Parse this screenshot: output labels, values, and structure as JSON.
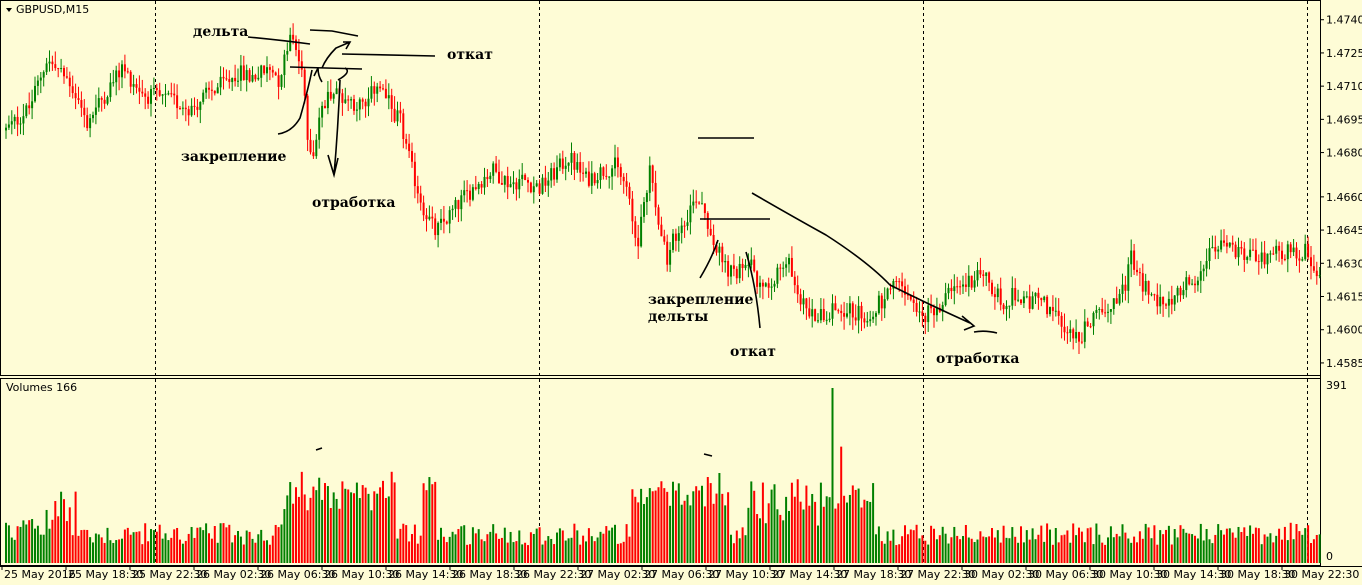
{
  "chart_data": [
    {
      "type": "candlestick",
      "title": "GBPUSD,M15",
      "yticks": [
        1.474,
        1.4725,
        1.471,
        1.4695,
        1.468,
        1.466,
        1.4645,
        1.463,
        1.4615,
        1.46,
        1.4585
      ],
      "ylim": [
        1.458,
        1.4748
      ],
      "sessions": [
        {
          "label": "25 May 2016"
        },
        {
          "label": "25 May 18:30"
        },
        {
          "label": "25 May 22:30"
        },
        {
          "label": "26 May 02:30"
        },
        {
          "label": "26 May 06:30"
        },
        {
          "label": "26 May 10:30"
        },
        {
          "label": "26 May 14:30"
        },
        {
          "label": "26 May 18:30"
        },
        {
          "label": "26 May 22:30"
        },
        {
          "label": "27 May 02:30"
        },
        {
          "label": "27 May 06:30"
        },
        {
          "label": "27 May 10:30"
        },
        {
          "label": "27 May 14:30"
        },
        {
          "label": "27 May 18:30"
        },
        {
          "label": "27 May 22:30"
        },
        {
          "label": "30 May 02:30"
        },
        {
          "label": "30 May 06:30"
        },
        {
          "label": "30 May 10:30"
        },
        {
          "label": "30 May 14:30"
        },
        {
          "label": "30 May 18:30"
        },
        {
          "label": "30 May 22:30"
        }
      ],
      "close_path": [
        [
          0,
          1.469
        ],
        [
          8,
          1.47
        ],
        [
          14,
          1.4722
        ],
        [
          22,
          1.4712
        ],
        [
          28,
          1.4694
        ],
        [
          34,
          1.4706
        ],
        [
          40,
          1.4718
        ],
        [
          44,
          1.4712
        ],
        [
          48,
          1.4706
        ],
        [
          52,
          1.4705
        ],
        [
          58,
          1.4703
        ],
        [
          64,
          1.47
        ],
        [
          70,
          1.4707
        ],
        [
          76,
          1.4712
        ],
        [
          80,
          1.4716
        ],
        [
          84,
          1.4714
        ],
        [
          92,
          1.4718
        ],
        [
          94,
          1.4713
        ],
        [
          96,
          1.4722
        ],
        [
          98,
          1.4732
        ],
        [
          100,
          1.4726
        ],
        [
          102,
          1.4718
        ],
        [
          104,
          1.4686
        ],
        [
          106,
          1.468
        ],
        [
          108,
          1.4696
        ],
        [
          112,
          1.4708
        ],
        [
          118,
          1.4704
        ],
        [
          124,
          1.47
        ],
        [
          128,
          1.4712
        ],
        [
          132,
          1.4702
        ],
        [
          136,
          1.4694
        ],
        [
          140,
          1.4672
        ],
        [
          144,
          1.4655
        ],
        [
          148,
          1.4644
        ],
        [
          152,
          1.465
        ],
        [
          158,
          1.466
        ],
        [
          164,
          1.4668
        ],
        [
          168,
          1.4672
        ],
        [
          174,
          1.4666
        ],
        [
          178,
          1.4668
        ],
        [
          184,
          1.4664
        ],
        [
          190,
          1.4672
        ],
        [
          194,
          1.4678
        ],
        [
          200,
          1.4668
        ],
        [
          206,
          1.4672
        ],
        [
          210,
          1.4674
        ],
        [
          214,
          1.4664
        ],
        [
          216,
          1.4648
        ],
        [
          218,
          1.464
        ],
        [
          222,
          1.4674
        ],
        [
          224,
          1.4656
        ],
        [
          226,
          1.4646
        ],
        [
          228,
          1.4628
        ],
        [
          230,
          1.464
        ],
        [
          234,
          1.465
        ],
        [
          238,
          1.466
        ],
        [
          240,
          1.4658
        ],
        [
          244,
          1.464
        ],
        [
          248,
          1.4628
        ],
        [
          252,
          1.4624
        ],
        [
          256,
          1.4632
        ],
        [
          260,
          1.4618
        ],
        [
          266,
          1.4626
        ],
        [
          270,
          1.463
        ],
        [
          274,
          1.4614
        ],
        [
          278,
          1.4606
        ],
        [
          282,
          1.4608
        ],
        [
          288,
          1.461
        ],
        [
          292,
          1.4608
        ],
        [
          296,
          1.4606
        ],
        [
          300,
          1.461
        ],
        [
          304,
          1.4616
        ],
        [
          308,
          1.462
        ],
        [
          312,
          1.4612
        ],
        [
          316,
          1.4604
        ],
        [
          320,
          1.461
        ],
        [
          326,
          1.4616
        ],
        [
          332,
          1.4622
        ],
        [
          336,
          1.4626
        ],
        [
          340,
          1.4618
        ],
        [
          344,
          1.4612
        ],
        [
          348,
          1.4616
        ],
        [
          352,
          1.4612
        ],
        [
          356,
          1.4614
        ],
        [
          362,
          1.4606
        ],
        [
          366,
          1.46
        ],
        [
          370,
          1.4596
        ],
        [
          374,
          1.4604
        ],
        [
          378,
          1.4608
        ],
        [
          382,
          1.4614
        ],
        [
          386,
          1.462
        ],
        [
          388,
          1.4632
        ],
        [
          392,
          1.462
        ],
        [
          396,
          1.4614
        ],
        [
          400,
          1.4612
        ],
        [
          404,
          1.4618
        ],
        [
          410,
          1.4624
        ],
        [
          414,
          1.4632
        ],
        [
          420,
          1.4638
        ],
        [
          426,
          1.4634
        ],
        [
          432,
          1.4632
        ],
        [
          438,
          1.4636
        ],
        [
          444,
          1.4634
        ],
        [
          448,
          1.4636
        ],
        [
          450,
          1.4632
        ],
        [
          453,
          1.4626
        ]
      ],
      "volume_panel": {
        "label": "Volumes 166",
        "ymax": 391,
        "ymin": 0
      },
      "annotations": [
        "дельта",
        "откат",
        "закрепление",
        "отработка",
        "закрепление",
        "дельты",
        "откат",
        "отработка"
      ]
    }
  ]
}
